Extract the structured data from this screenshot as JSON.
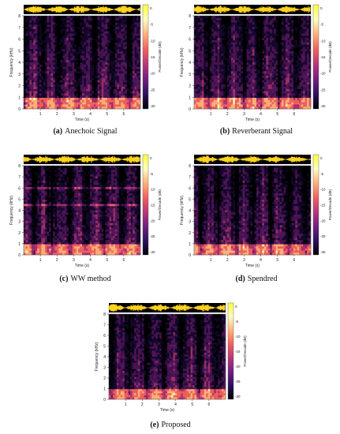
{
  "figure": {
    "common": {
      "ylabel": "Frequency (kHz)",
      "xlabel": "Time (s)",
      "colorbar_label": "Power/Decade (dB)",
      "yticks": [
        "0",
        "1",
        "2",
        "3",
        "4",
        "5",
        "6",
        "7",
        "8"
      ],
      "xticks": [
        "1",
        "2",
        "3",
        "4",
        "5",
        "6"
      ]
    },
    "panels": [
      {
        "letter": "(a)",
        "caption": "Anechoic Signal",
        "cbar_ticks": [
          "0",
          "-5",
          "-10",
          "-15",
          "-20",
          "-25",
          "-30"
        ]
      },
      {
        "letter": "(b)",
        "caption": "Reverberant Signal",
        "cbar_ticks": [
          "0",
          "-5",
          "-10",
          "-15",
          "-20",
          "-25",
          "-30"
        ]
      },
      {
        "letter": "(c)",
        "caption": "WW method",
        "cbar_ticks": [
          "0",
          "-5",
          "-10",
          "-15",
          "-20",
          "-25",
          "-30"
        ]
      },
      {
        "letter": "(d)",
        "caption": "Spendred",
        "cbar_ticks": [
          "0",
          "-5",
          "-10",
          "-15",
          "-20",
          "-25",
          "-30"
        ]
      },
      {
        "letter": "(e)",
        "caption": "Proposed",
        "cbar_ticks": [
          "0",
          "-5",
          "-10",
          "-15",
          "-20",
          "-25",
          "-30"
        ]
      }
    ]
  },
  "colors": {
    "background": "#000000",
    "waveform": "#ffd21e",
    "colormap": [
      "#000004",
      "#2c115f",
      "#721f81",
      "#b73779",
      "#f1605d",
      "#feb078",
      "#fcfdbf",
      "#fcfd3a"
    ]
  }
}
